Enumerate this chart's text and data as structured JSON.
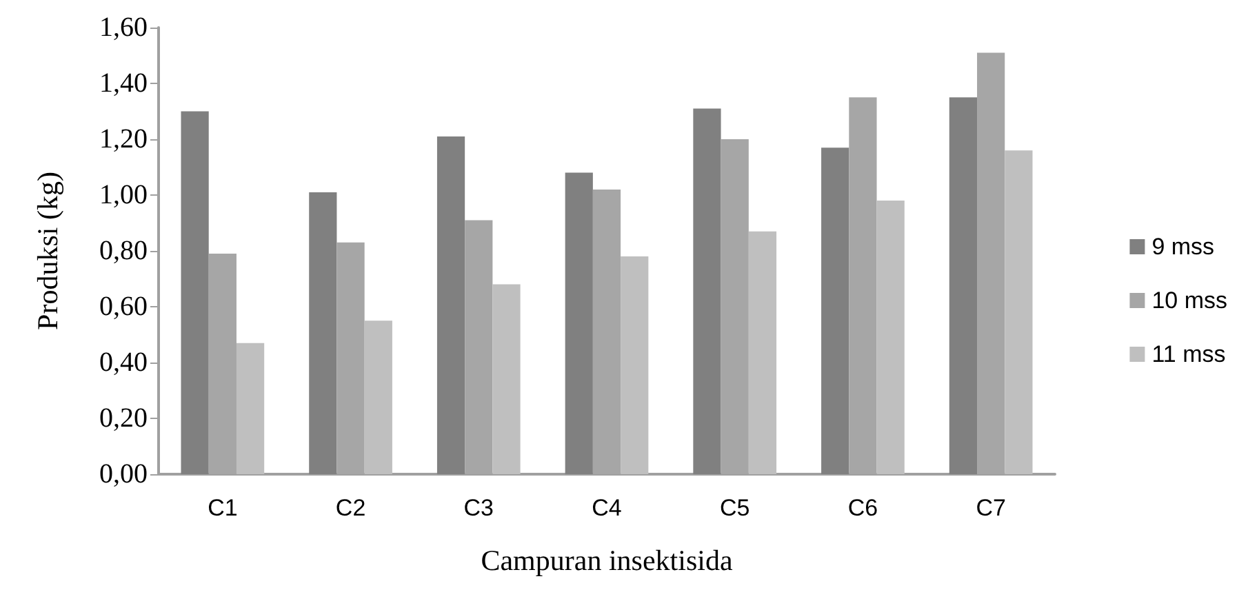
{
  "chart_data": {
    "type": "bar",
    "xlabel": "Campuran insektisida",
    "ylabel": "Produksi (kg)",
    "categories": [
      "C1",
      "C2",
      "C3",
      "C4",
      "C5",
      "C6",
      "C7"
    ],
    "series": [
      {
        "name": "9 mss",
        "color": "#808080",
        "values": [
          1.3,
          1.01,
          1.21,
          1.08,
          1.31,
          1.17,
          1.35
        ]
      },
      {
        "name": "10 mss",
        "color": "#a6a6a6",
        "values": [
          0.79,
          0.83,
          0.91,
          1.02,
          1.2,
          1.35,
          1.51
        ]
      },
      {
        "name": "11 mss",
        "color": "#bfbfbf",
        "values": [
          0.47,
          0.55,
          0.68,
          0.78,
          0.87,
          0.98,
          1.16
        ]
      }
    ],
    "ylim": [
      0,
      1.6
    ],
    "yticks": [
      {
        "value": 0,
        "label": "0,00"
      },
      {
        "value": 0.2,
        "label": "0,20"
      },
      {
        "value": 0.4,
        "label": "0,40"
      },
      {
        "value": 0.6,
        "label": "0,60"
      },
      {
        "value": 0.8,
        "label": "0,80"
      },
      {
        "value": 1.0,
        "label": "1,00"
      },
      {
        "value": 1.2,
        "label": "1,20"
      },
      {
        "value": 1.4,
        "label": "1,40"
      },
      {
        "value": 1.6,
        "label": "1,60"
      }
    ],
    "grid": false,
    "legend": "right"
  }
}
